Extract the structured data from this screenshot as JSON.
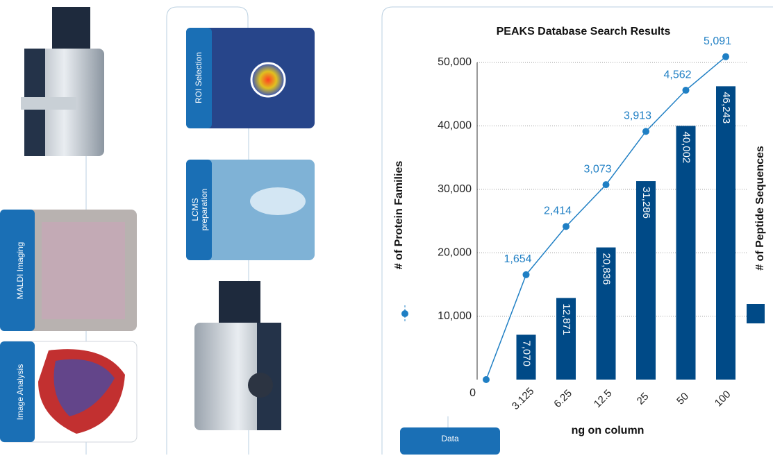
{
  "panels": [
    {
      "lines": [
        "MALDI Imaging"
      ]
    },
    {
      "lines": [
        "Image Analysis"
      ]
    },
    {
      "lines": [
        "ROI Selection"
      ]
    },
    {
      "lines": [
        "LCMS",
        "preparation"
      ]
    },
    {
      "lines": [
        "Data"
      ]
    }
  ],
  "chart_data": {
    "type": "bar",
    "title": "PEAKS Database Search Results",
    "x_label": "ng on column",
    "categories": [
      null,
      "3.125",
      "6.25",
      "12.5",
      "25",
      "50",
      "100"
    ],
    "series": [
      {
        "name": "# of Peptide Sequences",
        "type": "bar",
        "color": "#004a87",
        "values": [
          null,
          7070,
          12871,
          20836,
          31286,
          40002,
          46243
        ],
        "value_labels": [
          null,
          "7,070",
          "12,871",
          "20,836",
          "31,286",
          "40,002",
          "46,243"
        ]
      },
      {
        "name": "# of Protein Families",
        "type": "line",
        "axis": "y2",
        "color": "#1f7fc4",
        "values": [
          0,
          1654,
          2414,
          3073,
          3913,
          4562,
          5091
        ],
        "value_labels": [
          null,
          "1,654",
          "2,414",
          "3,073",
          "3,913",
          "4,562",
          "5,091"
        ]
      }
    ],
    "ylim": [
      0,
      50000
    ],
    "yticks": [
      0,
      {
        "value": 10000,
        "label": "10,000"
      },
      {
        "value": 20000,
        "label": "20,000"
      },
      {
        "value": 30000,
        "label": "30,000"
      },
      {
        "value": 40000,
        "label": "40,000"
      },
      {
        "value": 50000,
        "label": "50,000"
      }
    ],
    "y2lim": [
      0,
      5000
    ],
    "grid": true
  }
}
